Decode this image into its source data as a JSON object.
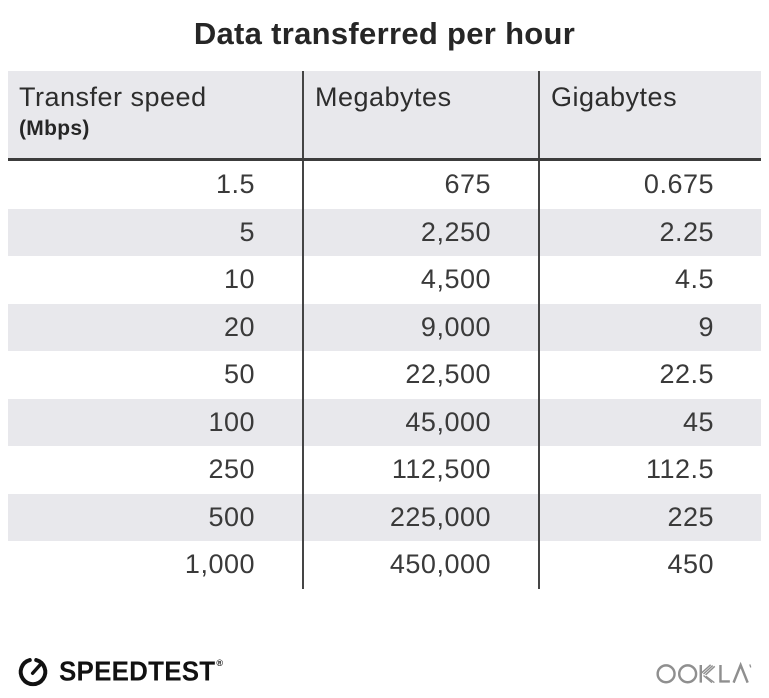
{
  "title": "Data transferred per hour",
  "table": {
    "columns": [
      {
        "label": "Transfer speed",
        "sublabel": "(Mbps)"
      },
      {
        "label": "Megabytes",
        "sublabel": ""
      },
      {
        "label": "Gigabytes",
        "sublabel": ""
      }
    ],
    "rows": [
      [
        "1.5",
        "675",
        "0.675"
      ],
      [
        "5",
        "2,250",
        "2.25"
      ],
      [
        "10",
        "4,500",
        "4.5"
      ],
      [
        "20",
        "9,000",
        "9"
      ],
      [
        "50",
        "22,500",
        "22.5"
      ],
      [
        "100",
        "45,000",
        "45"
      ],
      [
        "250",
        "112,500",
        "112.5"
      ],
      [
        "500",
        "225,000",
        "225"
      ],
      [
        "1,000",
        "450,000",
        "450"
      ]
    ]
  },
  "chart_data": {
    "type": "table",
    "title": "Data transferred per hour",
    "columns": [
      "Transfer speed (Mbps)",
      "Megabytes",
      "Gigabytes"
    ],
    "rows": [
      [
        1.5,
        675,
        0.675
      ],
      [
        5,
        2250,
        2.25
      ],
      [
        10,
        4500,
        4.5
      ],
      [
        20,
        9000,
        9
      ],
      [
        50,
        22500,
        22.5
      ],
      [
        100,
        45000,
        45
      ],
      [
        250,
        112500,
        112.5
      ],
      [
        500,
        225000,
        225
      ],
      [
        1000,
        450000,
        450
      ]
    ]
  },
  "footer": {
    "speedtest_label": "SPEEDTEST",
    "speedtest_trademark": "®",
    "ookla_label": "OOKLA"
  },
  "colors": {
    "stripe": "#e8e8ec",
    "divider": "#454545",
    "header_underline": "#3c3c3c",
    "title_text": "#262626",
    "body_text": "#3a3a3a",
    "speedtest_black": "#111111",
    "ookla_gray": "#8f8f8f"
  }
}
